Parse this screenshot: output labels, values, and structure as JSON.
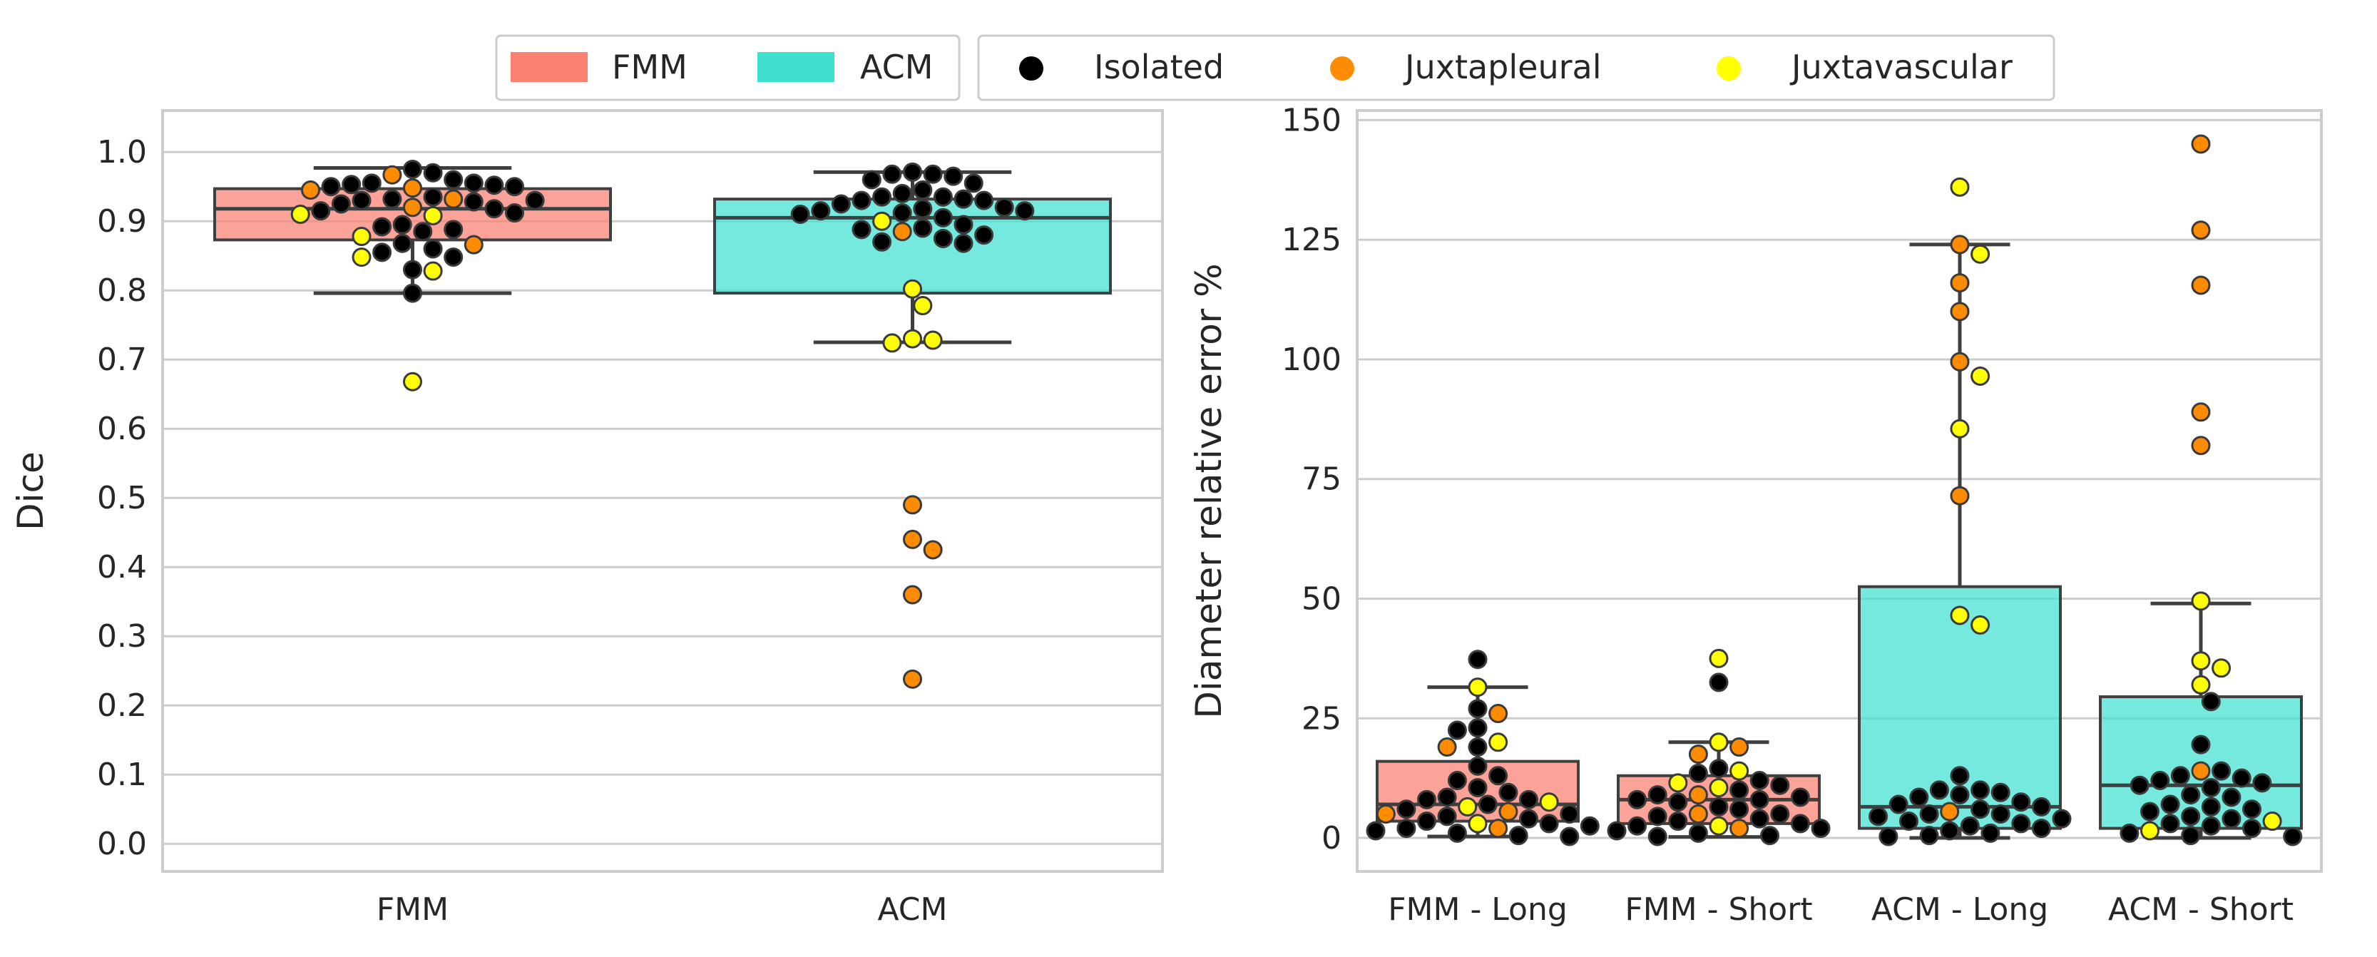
{
  "legend_box": {
    "method_label": "FMM",
    "method2_label": "ACM",
    "isolated_label": "Isolated",
    "juxtapleural_label": "Juxtapleural",
    "juxtavascular_label": "Juxtavascular"
  },
  "colors": {
    "fmm": "#fa8072",
    "acm": "#40e0d0",
    "isolated": "#000000",
    "juxtapleural": "#ff8c00",
    "juxtavascular": "#ffff00",
    "grid": "#cccccc",
    "axis": "#cccccc",
    "whisker": "#3f3f3f"
  },
  "chart_data": [
    {
      "type": "box+swarm",
      "xlabel": "",
      "ylabel": "Dice",
      "ylim": [
        -0.04,
        1.06
      ],
      "yticks": [
        0.0,
        0.1,
        0.2,
        0.3,
        0.4,
        0.5,
        0.6,
        0.7,
        0.8,
        0.9,
        1.0
      ],
      "ytick_labels": [
        "0.0",
        "0.1",
        "0.2",
        "0.3",
        "0.4",
        "0.5",
        "0.6",
        "0.7",
        "0.8",
        "0.9",
        "1.0"
      ],
      "categories": [
        "FMM",
        "ACM"
      ],
      "boxes": [
        {
          "method": "FMM",
          "q1": 0.873,
          "median": 0.918,
          "q3": 0.947,
          "whisker_low": 0.796,
          "whisker_high": 0.977
        },
        {
          "method": "ACM",
          "q1": 0.796,
          "median": 0.905,
          "q3": 0.932,
          "whisker_low": 0.725,
          "whisker_high": 0.971
        }
      ],
      "points": [
        [
          {
            "y": 0.967,
            "t": "juxtapleural"
          },
          {
            "y": 0.96,
            "t": "isolated"
          },
          {
            "y": 0.955,
            "t": "isolated"
          },
          {
            "y": 0.95,
            "t": "isolated"
          },
          {
            "y": 0.975,
            "t": "isolated"
          },
          {
            "y": 0.97,
            "t": "isolated"
          },
          {
            "y": 0.948,
            "t": "juxtapleural"
          },
          {
            "y": 0.945,
            "t": "juxtapleural"
          },
          {
            "y": 0.952,
            "t": "isolated"
          },
          {
            "y": 0.95,
            "t": "isolated"
          },
          {
            "y": 0.953,
            "t": "isolated"
          },
          {
            "y": 0.955,
            "t": "isolated"
          },
          {
            "y": 0.932,
            "t": "isolated"
          },
          {
            "y": 0.93,
            "t": "isolated"
          },
          {
            "y": 0.935,
            "t": "isolated"
          },
          {
            "y": 0.925,
            "t": "isolated"
          },
          {
            "y": 0.93,
            "t": "isolated"
          },
          {
            "y": 0.928,
            "t": "isolated"
          },
          {
            "y": 0.932,
            "t": "juxtapleural"
          },
          {
            "y": 0.918,
            "t": "isolated"
          },
          {
            "y": 0.92,
            "t": "juxtapleural"
          },
          {
            "y": 0.915,
            "t": "isolated"
          },
          {
            "y": 0.912,
            "t": "isolated"
          },
          {
            "y": 0.908,
            "t": "juxtavascular"
          },
          {
            "y": 0.91,
            "t": "juxtavascular"
          },
          {
            "y": 0.892,
            "t": "isolated"
          },
          {
            "y": 0.895,
            "t": "isolated"
          },
          {
            "y": 0.888,
            "t": "isolated"
          },
          {
            "y": 0.885,
            "t": "isolated"
          },
          {
            "y": 0.878,
            "t": "juxtavascular"
          },
          {
            "y": 0.868,
            "t": "isolated"
          },
          {
            "y": 0.866,
            "t": "juxtapleural"
          },
          {
            "y": 0.86,
            "t": "isolated"
          },
          {
            "y": 0.855,
            "t": "isolated"
          },
          {
            "y": 0.848,
            "t": "isolated"
          },
          {
            "y": 0.848,
            "t": "juxtavascular"
          },
          {
            "y": 0.83,
            "t": "isolated"
          },
          {
            "y": 0.828,
            "t": "juxtavascular"
          },
          {
            "y": 0.796,
            "t": "isolated"
          },
          {
            "y": 0.668,
            "t": "juxtavascular"
          }
        ],
        [
          {
            "y": 0.971,
            "t": "isolated"
          },
          {
            "y": 0.968,
            "t": "isolated"
          },
          {
            "y": 0.965,
            "t": "isolated"
          },
          {
            "y": 0.968,
            "t": "isolated"
          },
          {
            "y": 0.96,
            "t": "isolated"
          },
          {
            "y": 0.955,
            "t": "isolated"
          },
          {
            "y": 0.945,
            "t": "isolated"
          },
          {
            "y": 0.94,
            "t": "isolated"
          },
          {
            "y": 0.935,
            "t": "isolated"
          },
          {
            "y": 0.935,
            "t": "isolated"
          },
          {
            "y": 0.93,
            "t": "isolated"
          },
          {
            "y": 0.932,
            "t": "isolated"
          },
          {
            "y": 0.93,
            "t": "isolated"
          },
          {
            "y": 0.925,
            "t": "isolated"
          },
          {
            "y": 0.92,
            "t": "isolated"
          },
          {
            "y": 0.918,
            "t": "isolated"
          },
          {
            "y": 0.915,
            "t": "isolated"
          },
          {
            "y": 0.915,
            "t": "isolated"
          },
          {
            "y": 0.912,
            "t": "isolated"
          },
          {
            "y": 0.91,
            "t": "isolated"
          },
          {
            "y": 0.905,
            "t": "isolated"
          },
          {
            "y": 0.9,
            "t": "juxtavascular"
          },
          {
            "y": 0.895,
            "t": "isolated"
          },
          {
            "y": 0.89,
            "t": "isolated"
          },
          {
            "y": 0.888,
            "t": "isolated"
          },
          {
            "y": 0.885,
            "t": "juxtapleural"
          },
          {
            "y": 0.88,
            "t": "isolated"
          },
          {
            "y": 0.875,
            "t": "isolated"
          },
          {
            "y": 0.87,
            "t": "isolated"
          },
          {
            "y": 0.868,
            "t": "isolated"
          },
          {
            "y": 0.802,
            "t": "juxtavascular"
          },
          {
            "y": 0.778,
            "t": "juxtavascular"
          },
          {
            "y": 0.73,
            "t": "juxtavascular"
          },
          {
            "y": 0.728,
            "t": "juxtavascular"
          },
          {
            "y": 0.724,
            "t": "juxtavascular"
          },
          {
            "y": 0.49,
            "t": "juxtapleural"
          },
          {
            "y": 0.44,
            "t": "juxtapleural"
          },
          {
            "y": 0.425,
            "t": "juxtapleural"
          },
          {
            "y": 0.36,
            "t": "juxtapleural"
          },
          {
            "y": 0.238,
            "t": "juxtapleural"
          }
        ]
      ]
    },
    {
      "type": "box+swarm",
      "xlabel": "",
      "ylabel": "Diameter relative error %",
      "ylim": [
        -7,
        152
      ],
      "yticks": [
        0,
        25,
        50,
        75,
        100,
        125,
        150
      ],
      "ytick_labels": [
        "0",
        "25",
        "50",
        "75",
        "100",
        "125",
        "150"
      ],
      "categories": [
        "FMM - Long",
        "FMM - Short",
        "ACM - Long",
        "ACM - Short"
      ],
      "boxes": [
        {
          "method": "FMM",
          "q1": 3.5,
          "median": 7.0,
          "q3": 16.0,
          "whisker_low": 0.3,
          "whisker_high": 31.5
        },
        {
          "method": "FMM",
          "q1": 3.0,
          "median": 8.0,
          "q3": 13.0,
          "whisker_low": 0.2,
          "whisker_high": 20.0
        },
        {
          "method": "ACM",
          "q1": 2.0,
          "median": 6.5,
          "q3": 52.5,
          "whisker_low": 0.0,
          "whisker_high": 124.0
        },
        {
          "method": "ACM",
          "q1": 2.0,
          "median": 11.0,
          "q3": 29.5,
          "whisker_low": 0.0,
          "whisker_high": 49.0
        }
      ],
      "points": [
        [
          {
            "y": 37.3,
            "t": "isolated"
          },
          {
            "y": 31.5,
            "t": "juxtavascular"
          },
          {
            "y": 27.0,
            "t": "isolated"
          },
          {
            "y": 26.0,
            "t": "juxtapleural"
          },
          {
            "y": 23.0,
            "t": "isolated"
          },
          {
            "y": 22.5,
            "t": "isolated"
          },
          {
            "y": 20.0,
            "t": "juxtavascular"
          },
          {
            "y": 19.0,
            "t": "isolated"
          },
          {
            "y": 19.0,
            "t": "juxtapleural"
          },
          {
            "y": 15.0,
            "t": "isolated"
          },
          {
            "y": 13.0,
            "t": "isolated"
          },
          {
            "y": 12.0,
            "t": "isolated"
          },
          {
            "y": 10.5,
            "t": "isolated"
          },
          {
            "y": 9.5,
            "t": "isolated"
          },
          {
            "y": 8.5,
            "t": "isolated"
          },
          {
            "y": 8.0,
            "t": "isolated"
          },
          {
            "y": 8.0,
            "t": "isolated"
          },
          {
            "y": 7.5,
            "t": "juxtavascular"
          },
          {
            "y": 7.0,
            "t": "isolated"
          },
          {
            "y": 6.5,
            "t": "juxtavascular"
          },
          {
            "y": 6.0,
            "t": "isolated"
          },
          {
            "y": 5.5,
            "t": "juxtapleural"
          },
          {
            "y": 5.0,
            "t": "isolated"
          },
          {
            "y": 5.0,
            "t": "juxtapleural"
          },
          {
            "y": 4.5,
            "t": "isolated"
          },
          {
            "y": 4.0,
            "t": "isolated"
          },
          {
            "y": 3.5,
            "t": "isolated"
          },
          {
            "y": 3.0,
            "t": "juxtavascular"
          },
          {
            "y": 3.0,
            "t": "isolated"
          },
          {
            "y": 2.5,
            "t": "isolated"
          },
          {
            "y": 2.0,
            "t": "juxtapleural"
          },
          {
            "y": 2.0,
            "t": "isolated"
          },
          {
            "y": 1.5,
            "t": "isolated"
          },
          {
            "y": 1.0,
            "t": "isolated"
          },
          {
            "y": 0.5,
            "t": "isolated"
          },
          {
            "y": 0.3,
            "t": "isolated"
          }
        ],
        [
          {
            "y": 37.5,
            "t": "juxtavascular"
          },
          {
            "y": 32.5,
            "t": "isolated"
          },
          {
            "y": 20.0,
            "t": "juxtavascular"
          },
          {
            "y": 19.0,
            "t": "juxtapleural"
          },
          {
            "y": 17.5,
            "t": "juxtapleural"
          },
          {
            "y": 14.5,
            "t": "isolated"
          },
          {
            "y": 14.0,
            "t": "juxtavascular"
          },
          {
            "y": 13.5,
            "t": "isolated"
          },
          {
            "y": 12.0,
            "t": "isolated"
          },
          {
            "y": 11.5,
            "t": "juxtavascular"
          },
          {
            "y": 11.0,
            "t": "isolated"
          },
          {
            "y": 10.5,
            "t": "juxtavascular"
          },
          {
            "y": 10.0,
            "t": "isolated"
          },
          {
            "y": 9.0,
            "t": "juxtapleural"
          },
          {
            "y": 9.0,
            "t": "isolated"
          },
          {
            "y": 8.5,
            "t": "isolated"
          },
          {
            "y": 8.0,
            "t": "isolated"
          },
          {
            "y": 8.0,
            "t": "isolated"
          },
          {
            "y": 7.5,
            "t": "isolated"
          },
          {
            "y": 6.5,
            "t": "isolated"
          },
          {
            "y": 6.0,
            "t": "isolated"
          },
          {
            "y": 5.0,
            "t": "juxtapleural"
          },
          {
            "y": 5.0,
            "t": "isolated"
          },
          {
            "y": 4.5,
            "t": "isolated"
          },
          {
            "y": 4.0,
            "t": "isolated"
          },
          {
            "y": 3.5,
            "t": "isolated"
          },
          {
            "y": 3.0,
            "t": "isolated"
          },
          {
            "y": 2.5,
            "t": "juxtavascular"
          },
          {
            "y": 2.5,
            "t": "isolated"
          },
          {
            "y": 2.0,
            "t": "juxtapleural"
          },
          {
            "y": 2.0,
            "t": "isolated"
          },
          {
            "y": 1.5,
            "t": "isolated"
          },
          {
            "y": 1.0,
            "t": "isolated"
          },
          {
            "y": 0.5,
            "t": "isolated"
          },
          {
            "y": 0.3,
            "t": "isolated"
          }
        ],
        [
          {
            "y": 136.0,
            "t": "juxtavascular"
          },
          {
            "y": 124.0,
            "t": "juxtapleural"
          },
          {
            "y": 122.0,
            "t": "juxtavascular"
          },
          {
            "y": 116.0,
            "t": "juxtapleural"
          },
          {
            "y": 110.0,
            "t": "juxtapleural"
          },
          {
            "y": 99.5,
            "t": "juxtapleural"
          },
          {
            "y": 96.5,
            "t": "juxtavascular"
          },
          {
            "y": 85.5,
            "t": "juxtavascular"
          },
          {
            "y": 71.5,
            "t": "juxtapleural"
          },
          {
            "y": 46.5,
            "t": "juxtavascular"
          },
          {
            "y": 44.5,
            "t": "juxtavascular"
          },
          {
            "y": 13.0,
            "t": "isolated"
          },
          {
            "y": 10.0,
            "t": "isolated"
          },
          {
            "y": 10.0,
            "t": "isolated"
          },
          {
            "y": 9.5,
            "t": "isolated"
          },
          {
            "y": 9.0,
            "t": "isolated"
          },
          {
            "y": 8.5,
            "t": "isolated"
          },
          {
            "y": 7.5,
            "t": "isolated"
          },
          {
            "y": 7.0,
            "t": "isolated"
          },
          {
            "y": 6.5,
            "t": "isolated"
          },
          {
            "y": 6.0,
            "t": "isolated"
          },
          {
            "y": 5.5,
            "t": "juxtapleural"
          },
          {
            "y": 5.0,
            "t": "isolated"
          },
          {
            "y": 5.0,
            "t": "isolated"
          },
          {
            "y": 4.5,
            "t": "isolated"
          },
          {
            "y": 4.0,
            "t": "isolated"
          },
          {
            "y": 3.5,
            "t": "isolated"
          },
          {
            "y": 3.0,
            "t": "isolated"
          },
          {
            "y": 2.5,
            "t": "isolated"
          },
          {
            "y": 2.0,
            "t": "isolated"
          },
          {
            "y": 1.5,
            "t": "isolated"
          },
          {
            "y": 1.0,
            "t": "isolated"
          },
          {
            "y": 0.5,
            "t": "isolated"
          },
          {
            "y": 0.3,
            "t": "isolated"
          }
        ],
        [
          {
            "y": 145.0,
            "t": "juxtapleural"
          },
          {
            "y": 127.0,
            "t": "juxtapleural"
          },
          {
            "y": 115.5,
            "t": "juxtapleural"
          },
          {
            "y": 89.0,
            "t": "juxtapleural"
          },
          {
            "y": 82.0,
            "t": "juxtapleural"
          },
          {
            "y": 49.5,
            "t": "juxtavascular"
          },
          {
            "y": 37.0,
            "t": "juxtavascular"
          },
          {
            "y": 35.5,
            "t": "juxtavascular"
          },
          {
            "y": 32.0,
            "t": "juxtavascular"
          },
          {
            "y": 28.5,
            "t": "isolated"
          },
          {
            "y": 19.5,
            "t": "isolated"
          },
          {
            "y": 14.0,
            "t": "juxtapleural"
          },
          {
            "y": 14.0,
            "t": "isolated"
          },
          {
            "y": 13.0,
            "t": "isolated"
          },
          {
            "y": 12.5,
            "t": "isolated"
          },
          {
            "y": 12.0,
            "t": "isolated"
          },
          {
            "y": 11.5,
            "t": "isolated"
          },
          {
            "y": 11.0,
            "t": "isolated"
          },
          {
            "y": 10.5,
            "t": "isolated"
          },
          {
            "y": 9.0,
            "t": "isolated"
          },
          {
            "y": 8.5,
            "t": "isolated"
          },
          {
            "y": 7.0,
            "t": "isolated"
          },
          {
            "y": 6.5,
            "t": "isolated"
          },
          {
            "y": 6.0,
            "t": "isolated"
          },
          {
            "y": 5.5,
            "t": "isolated"
          },
          {
            "y": 4.5,
            "t": "isolated"
          },
          {
            "y": 4.0,
            "t": "isolated"
          },
          {
            "y": 3.5,
            "t": "juxtavascular"
          },
          {
            "y": 3.0,
            "t": "isolated"
          },
          {
            "y": 2.5,
            "t": "isolated"
          },
          {
            "y": 2.0,
            "t": "isolated"
          },
          {
            "y": 1.5,
            "t": "juxtavascular"
          },
          {
            "y": 1.0,
            "t": "isolated"
          },
          {
            "y": 0.5,
            "t": "isolated"
          },
          {
            "y": 0.3,
            "t": "isolated"
          }
        ]
      ]
    }
  ]
}
